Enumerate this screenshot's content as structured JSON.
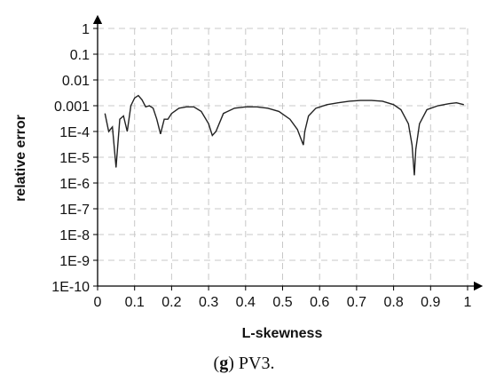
{
  "chart_data": {
    "type": "line",
    "title": "",
    "xlabel": "L-skewness",
    "ylabel": "relative error",
    "xlim": [
      0,
      1
    ],
    "ylim": [
      1e-10,
      1
    ],
    "y_scale": "log",
    "grid": true,
    "x_tick_labels": [
      "0",
      "0.1",
      "0.2",
      "0.3",
      "0.4",
      "0.5",
      "0.6",
      "0.7",
      "0.8",
      "0.9",
      "1"
    ],
    "y_tick_labels": [
      "1E-10",
      "1E-9",
      "1E-8",
      "1E-7",
      "1E-6",
      "1E-5",
      "1E-4",
      "0.001",
      "0.01",
      "0.1",
      "1"
    ],
    "series": [
      {
        "x": [
          0.02,
          0.03,
          0.04,
          0.05,
          0.06,
          0.07,
          0.08,
          0.09,
          0.1,
          0.11,
          0.12,
          0.13,
          0.14,
          0.15,
          0.16,
          0.17,
          0.18,
          0.19,
          0.2,
          0.22,
          0.24,
          0.26,
          0.28,
          0.3,
          0.31,
          0.32,
          0.34,
          0.37,
          0.4,
          0.43,
          0.46,
          0.49,
          0.52,
          0.54,
          0.55,
          0.556,
          0.56,
          0.57,
          0.59,
          0.62,
          0.65,
          0.68,
          0.71,
          0.74,
          0.77,
          0.8,
          0.82,
          0.84,
          0.85,
          0.856,
          0.86,
          0.87,
          0.89,
          0.92,
          0.95,
          0.97,
          0.99
        ],
        "y": [
          0.0005,
          0.0001,
          0.00015,
          4e-06,
          0.0003,
          0.0004,
          0.0001,
          0.001,
          0.002,
          0.0025,
          0.0017,
          0.0009,
          0.001,
          0.0008,
          0.0003,
          8e-05,
          0.0003,
          0.0003,
          0.0005,
          0.0008,
          0.0009,
          0.0009,
          0.0006,
          0.0002,
          7e-05,
          0.0001,
          0.0005,
          0.0008,
          0.0009,
          0.0009,
          0.0008,
          0.0006,
          0.0003,
          0.00012,
          5e-05,
          3e-05,
          0.0001,
          0.0004,
          0.0008,
          0.0011,
          0.0013,
          0.0015,
          0.0016,
          0.0016,
          0.0015,
          0.0011,
          0.0007,
          0.0002,
          3e-05,
          2e-06,
          2e-05,
          0.0002,
          0.0007,
          0.001,
          0.0012,
          0.0013,
          0.0011
        ]
      }
    ]
  },
  "caption": {
    "panel_letter": "g",
    "panel_open": "(",
    "panel_close": ")",
    "text": " PV3."
  }
}
